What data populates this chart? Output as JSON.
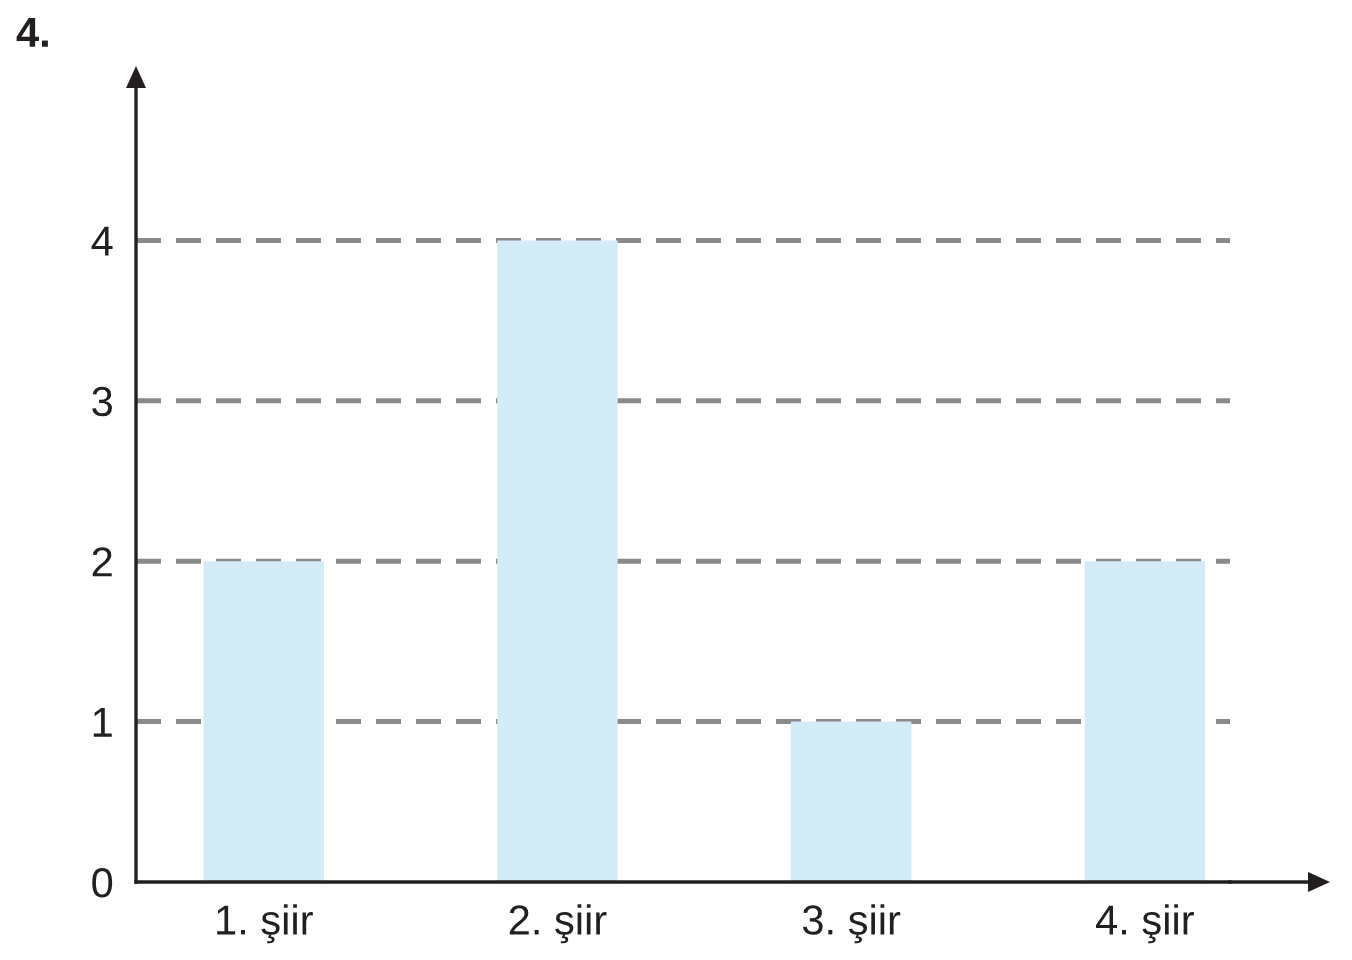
{
  "chart_data": {
    "type": "bar",
    "title": "4.",
    "categories": [
      "1. şiir",
      "2. şiir",
      "3. şiir",
      "4. şiir"
    ],
    "values": [
      2,
      4,
      1,
      2
    ],
    "color": "#d4ebf8",
    "ylim": [
      0,
      5
    ],
    "yticks": [
      0,
      1,
      2,
      3,
      4
    ],
    "grid": "y",
    "line_style": "dashed"
  }
}
